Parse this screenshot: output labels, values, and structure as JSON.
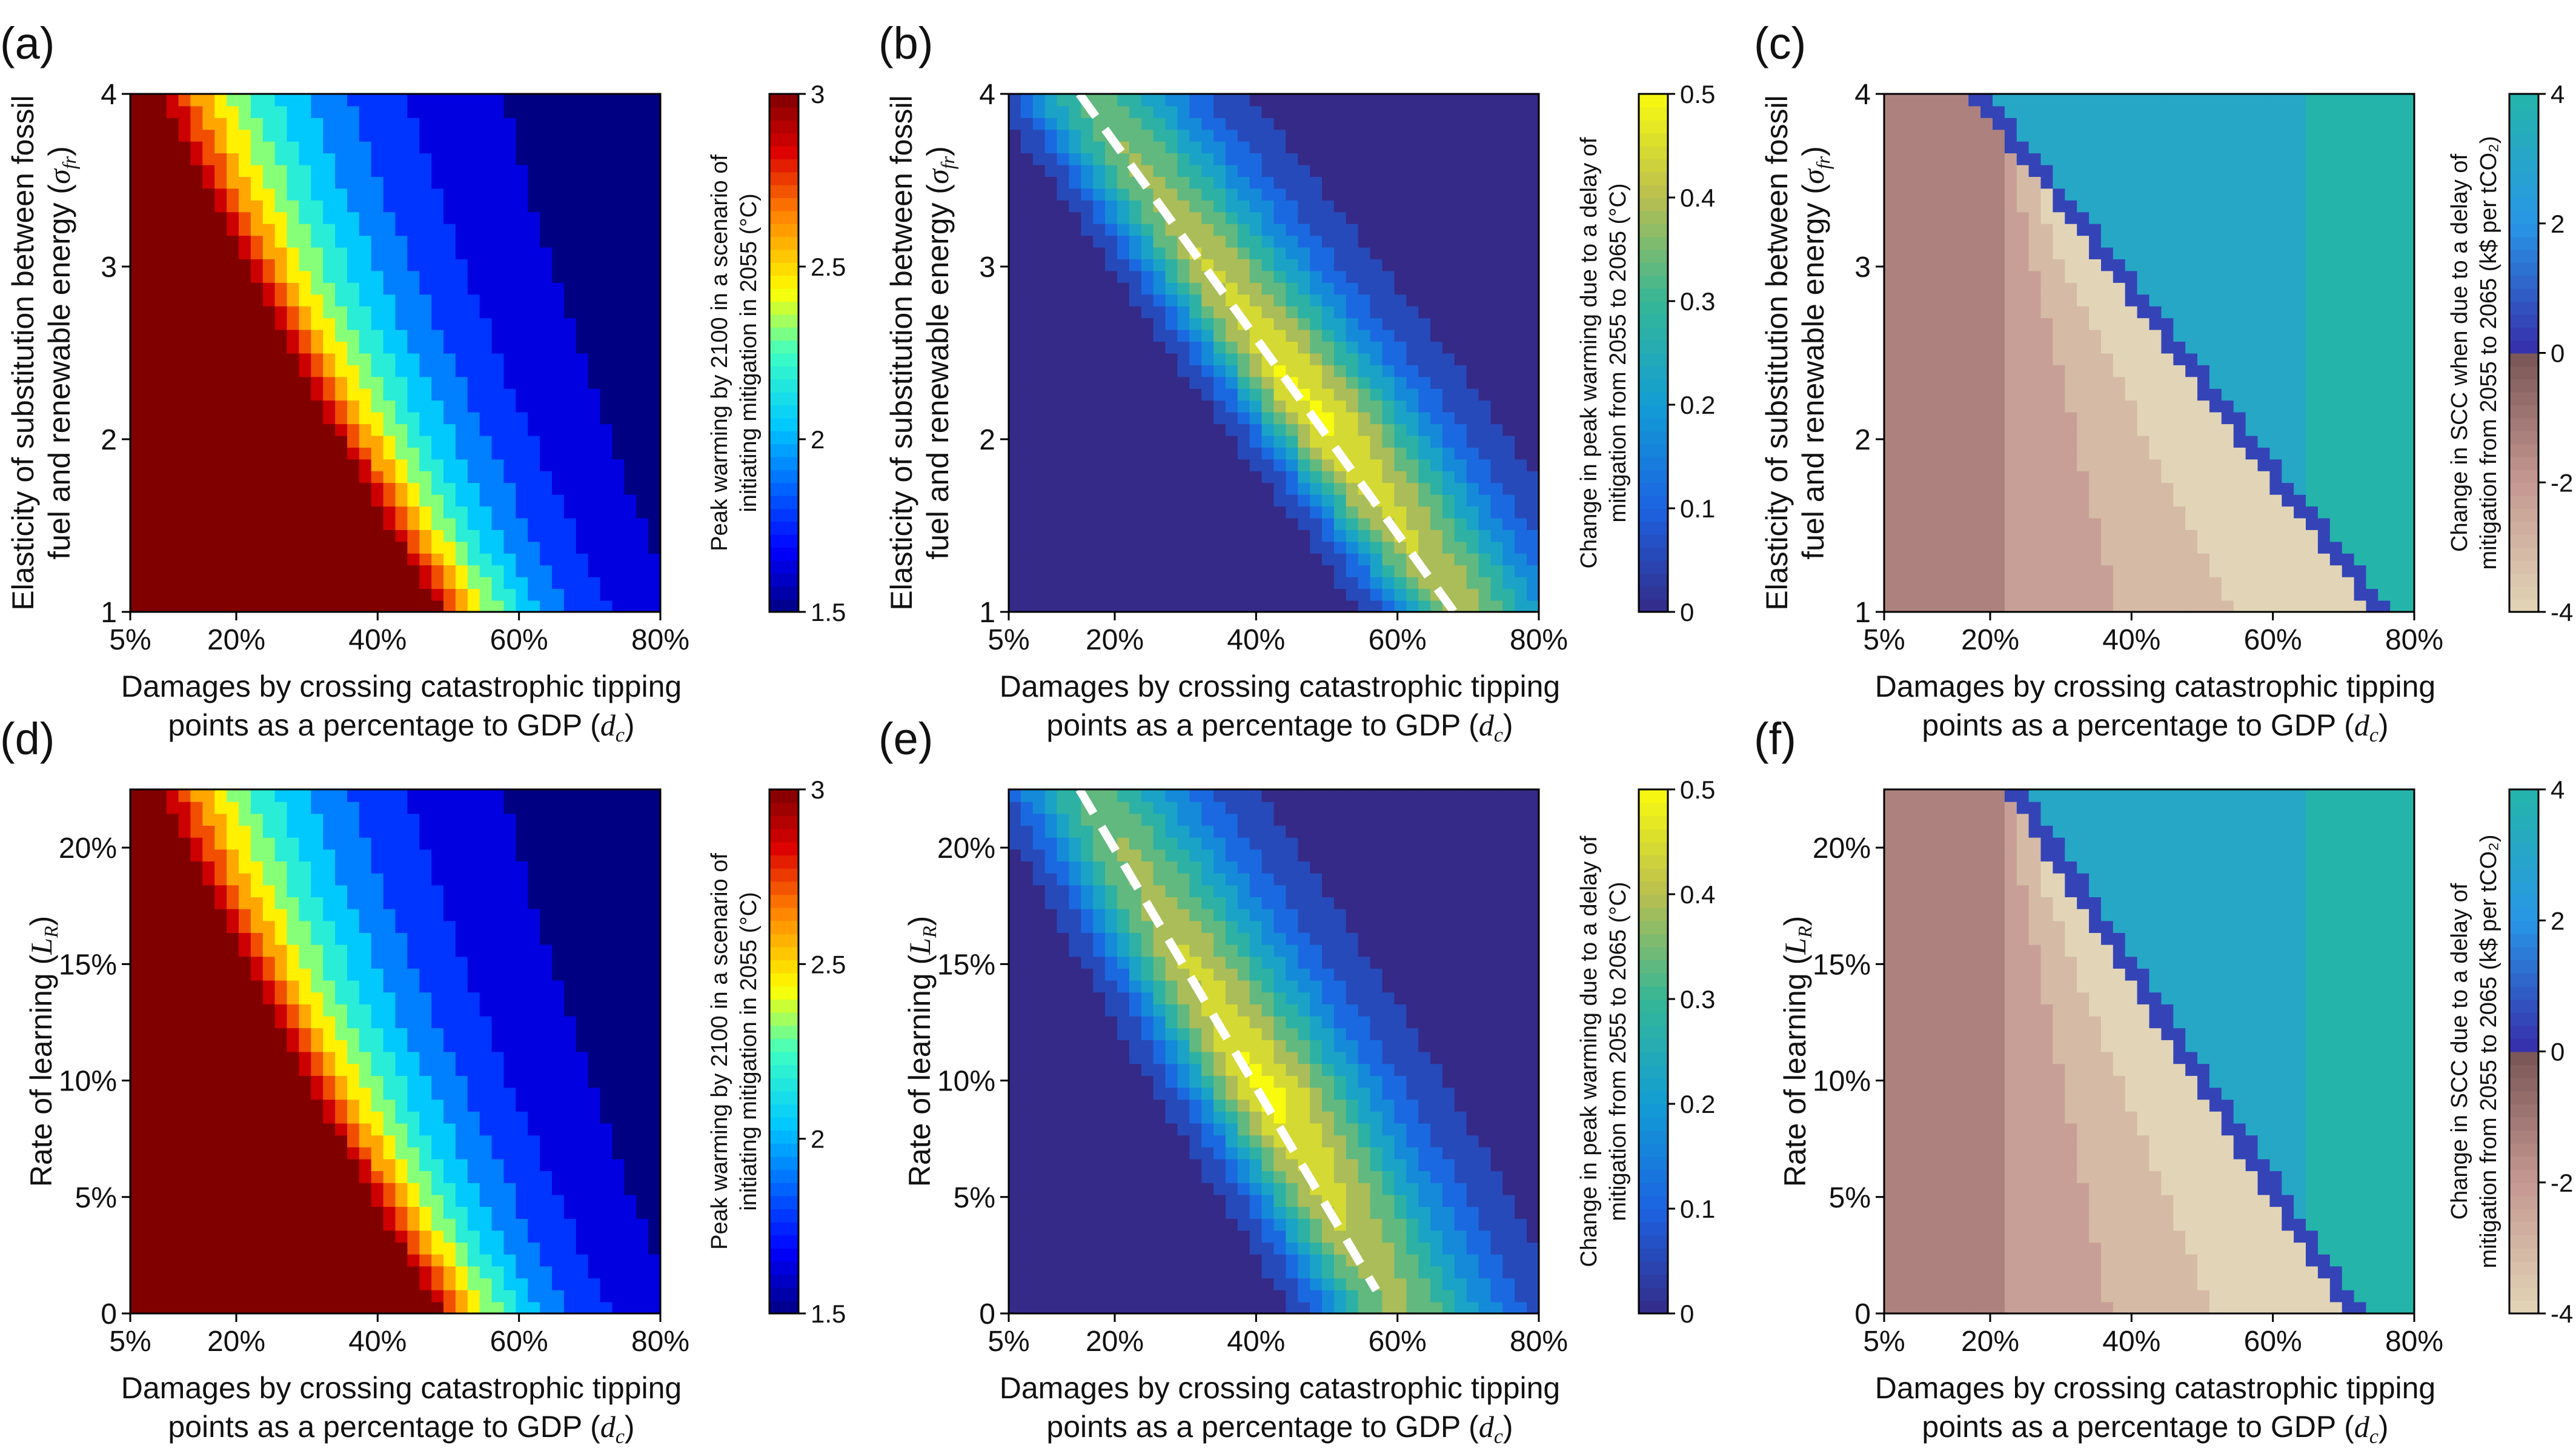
{
  "figure": {
    "shared": {
      "xlabel_line1": "Damages by crossing catastrophic tipping",
      "xlabel_line2": "points as a percentage to GDP (",
      "xlabel_symbol": "d",
      "xlabel_sub": "c",
      "xlabel_close": ")",
      "x_ticks": [
        "5%",
        "20%",
        "40%",
        "60%",
        "80%"
      ],
      "x_tick_values": [
        5,
        20,
        40,
        60,
        80
      ],
      "xlim": [
        5,
        80
      ]
    }
  },
  "chart_data": [
    {
      "panel": "(a)",
      "type": "heatmap",
      "subtype": "filled contour",
      "ylabel_line1": "Elasticity of substitution between fossil",
      "ylabel_line2": "fuel and renewable energy (",
      "ylabel_symbol": "σ",
      "ylabel_sub": "fr",
      "ylabel_close": ")",
      "y_ticks": [
        "1",
        "2",
        "3",
        "4"
      ],
      "y_tick_values": [
        1,
        2,
        3,
        4
      ],
      "ylim": [
        1,
        4
      ],
      "colorbar": {
        "label_line1": "Peak warming by 2100 in a scenario of",
        "label_line2": "initiating mitigation in 2055 (°C)",
        "ticks": [
          "1.5",
          "2",
          "2.5",
          "3"
        ],
        "tick_values": [
          1.5,
          2,
          2.5,
          3
        ],
        "range": [
          1.5,
          3
        ],
        "colormap": "jet"
      },
      "field": {
        "kind": "peak",
        "center": [
          1,
          2.5
        ],
        "slope": 0.04,
        "bend": 0.0018,
        "scale": 0.09,
        "ymid": 2.5
      }
    },
    {
      "panel": "(b)",
      "type": "heatmap",
      "subtype": "filled contour",
      "ylabel_line1": "Elasticity of substitution between fossil",
      "ylabel_line2": "fuel and renewable energy (",
      "ylabel_symbol": "σ",
      "ylabel_sub": "fr",
      "ylabel_close": ")",
      "y_ticks": [
        "1",
        "2",
        "3",
        "4"
      ],
      "y_tick_values": [
        1,
        2,
        3,
        4
      ],
      "ylim": [
        1,
        4
      ],
      "colorbar": {
        "label_line1": "Change in peak warming due to a delay of",
        "label_line2": "mitigation from 2055 to 2065 (°C)",
        "ticks": [
          "0",
          "0.1",
          "0.2",
          "0.3",
          "0.4",
          "0.5"
        ],
        "tick_values": [
          0,
          0.1,
          0.2,
          0.3,
          0.4,
          0.5
        ],
        "range": [
          0,
          0.5
        ],
        "colormap": "parula"
      },
      "dashed_line": {
        "x": [
          15,
          68
        ],
        "y": [
          4,
          1
        ]
      },
      "field": {
        "kind": "ridge",
        "line": {
          "x": [
            15,
            68
          ],
          "y": [
            4,
            1
          ]
        },
        "peak": 0.42,
        "width": 7.5,
        "base": 0.02,
        "yspread": 0.45
      }
    },
    {
      "panel": "(c)",
      "type": "heatmap",
      "subtype": "filled contour",
      "ylabel_line1": "Elasticity of substitution between fossil",
      "ylabel_line2": "fuel and renewable energy (",
      "ylabel_symbol": "σ",
      "ylabel_sub": "fr",
      "ylabel_close": ")",
      "y_ticks": [
        "1",
        "2",
        "3",
        "4"
      ],
      "y_tick_values": [
        1,
        2,
        3,
        4
      ],
      "ylim": [
        1,
        4
      ],
      "colorbar": {
        "label_line1": "Change in SCC when due to a delay of",
        "label_line2": "mitigation from 2055 to 2065 (k$ per tCO₂)",
        "ticks": [
          "-4",
          "-2",
          "0",
          "2",
          "4"
        ],
        "tick_values": [
          -4,
          -2,
          0,
          2,
          4
        ],
        "range": [
          -4,
          4
        ],
        "colormap": "diverging brown-blue"
      },
      "field": {
        "kind": "scc",
        "line": {
          "x": [
            17,
            74
          ],
          "y": [
            4,
            1
          ]
        }
      }
    },
    {
      "panel": "(d)",
      "type": "heatmap",
      "subtype": "filled contour",
      "ylabel_line1": "Rate of learning (",
      "ylabel_symbol": "L",
      "ylabel_sub": "R",
      "ylabel_close": ")",
      "y_ticks": [
        "0",
        "5%",
        "10%",
        "15%",
        "20%"
      ],
      "y_tick_values": [
        0,
        5,
        10,
        15,
        20
      ],
      "ylim": [
        0,
        22.5
      ],
      "colorbar": {
        "label_line1": "Peak warming by 2100 in a scenario of",
        "label_line2": "initiating mitigation in 2055 (°C)",
        "ticks": [
          "1.5",
          "2",
          "2.5",
          "3"
        ],
        "tick_values": [
          1.5,
          2,
          2.5,
          3
        ],
        "range": [
          1.5,
          3
        ],
        "colormap": "jet"
      },
      "field": {
        "kind": "peak",
        "center": [
          1,
          11
        ],
        "slope": 0.04,
        "bend": 0.0004,
        "scale": 0.012,
        "ymid": 8
      }
    },
    {
      "panel": "(e)",
      "type": "heatmap",
      "subtype": "filled contour",
      "ylabel_line1": "Rate of learning (",
      "ylabel_symbol": "L",
      "ylabel_sub": "R",
      "ylabel_close": ")",
      "y_ticks": [
        "0",
        "5%",
        "10%",
        "15%",
        "20%"
      ],
      "y_tick_values": [
        0,
        5,
        10,
        15,
        20
      ],
      "ylim": [
        0,
        22.5
      ],
      "colorbar": {
        "label_line1": "Change in peak warming due to a delay of",
        "label_line2": "mitigation from 2055 to 2065 (°C)",
        "ticks": [
          "0",
          "0.1",
          "0.2",
          "0.3",
          "0.4",
          "0.5"
        ],
        "tick_values": [
          0,
          0.1,
          0.2,
          0.3,
          0.4,
          0.5
        ],
        "range": [
          0,
          0.5
        ],
        "colormap": "parula"
      },
      "dashed_line": {
        "x": [
          15,
          57
        ],
        "y": [
          22.5,
          1
        ]
      },
      "field": {
        "kind": "ridge",
        "line": {
          "x": [
            15,
            57
          ],
          "y": [
            22.5,
            1
          ]
        },
        "peak": 0.42,
        "width": 8,
        "base": 0.02,
        "yspread": 0.45
      }
    },
    {
      "panel": "(f)",
      "type": "heatmap",
      "subtype": "filled contour",
      "ylabel_line1": "Rate of learning (",
      "ylabel_symbol": "L",
      "ylabel_sub": "R",
      "ylabel_close": ")",
      "y_ticks": [
        "0",
        "5%",
        "10%",
        "15%",
        "20%"
      ],
      "y_tick_values": [
        0,
        5,
        10,
        15,
        20
      ],
      "ylim": [
        0,
        22.5
      ],
      "colorbar": {
        "label_line1": "Change in SCC due to a delay of",
        "label_line2": "mitigation from 2055 to 2065 (k$ per tCO₂)",
        "ticks": [
          "-4",
          "-2",
          "0",
          "2",
          "4"
        ],
        "tick_values": [
          -4,
          -2,
          0,
          2,
          4
        ],
        "range": [
          -4,
          4
        ],
        "colormap": "diverging brown-blue"
      },
      "field": {
        "kind": "scc",
        "line": {
          "x": [
            22,
            70
          ],
          "y": [
            22.5,
            0
          ]
        }
      }
    }
  ]
}
